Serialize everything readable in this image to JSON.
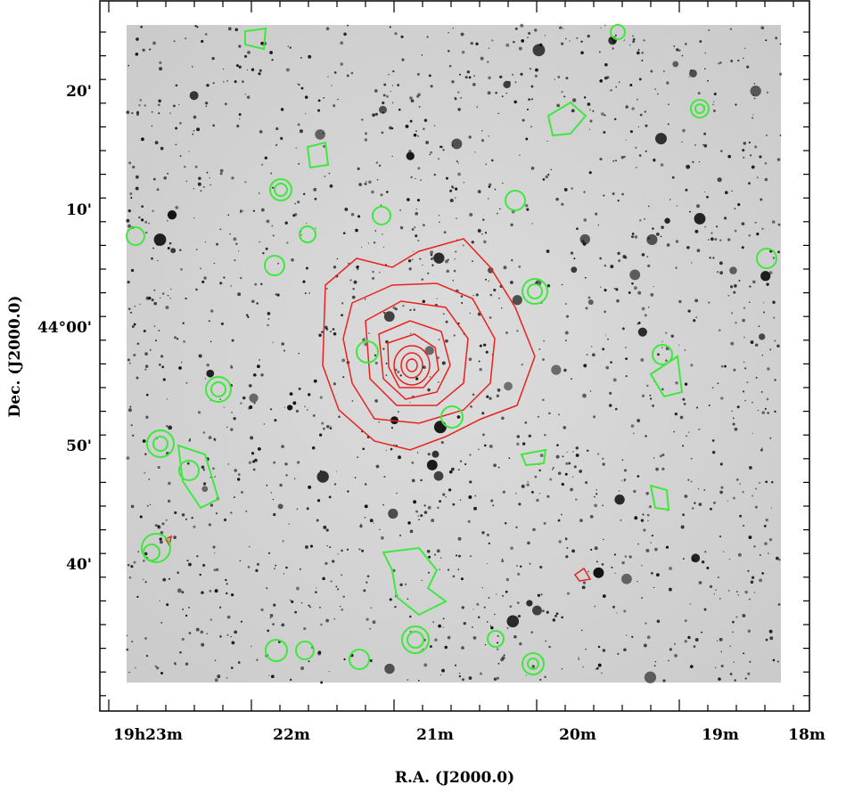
{
  "figure": {
    "x_axis": {
      "label": "R.A. (J2000.0)",
      "ticks": [
        "19h23m",
        "22m",
        "21m",
        "20m",
        "19m",
        "18m"
      ]
    },
    "y_axis": {
      "label": "Dec. (J2000.0)",
      "ticks": [
        "20'",
        "10'",
        "44°00'",
        "50'",
        "40'"
      ]
    }
  }
}
